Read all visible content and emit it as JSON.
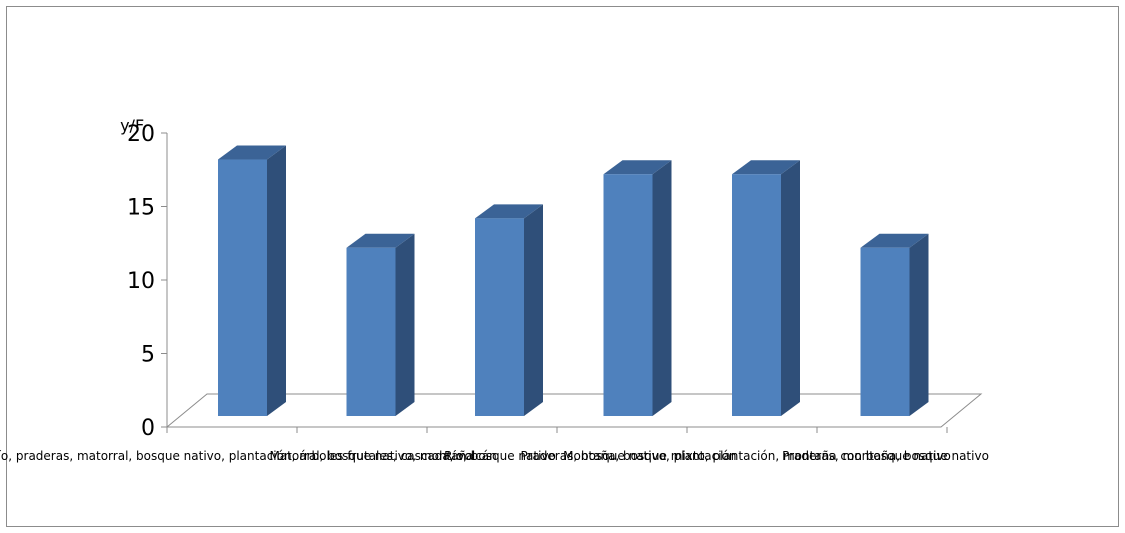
{
  "chart_data": {
    "type": "bar",
    "title": "",
    "xlabel": "",
    "ylabel": " y/F",
    "ylim": [
      0,
      20
    ],
    "yticks": [
      0,
      5,
      10,
      15,
      20
    ],
    "grid": false,
    "three_d": true,
    "bar_color": "#4f81bd",
    "bar_side_color": "#2f4f79",
    "bar_top_color": "#3b6396",
    "categories": [
      "Río, praderas, matorral, bosque nativo, plantación, árboles frutales, cascada, volcán",
      "Matorral, bosque nativo, montaña",
      "Río, bosque nativo",
      "Praderas, bosque nativo, plantación",
      "Montaña, bosque mixto, plantación, montaña con bosque nativo",
      "Praderas, montaña, bosque nativo"
    ],
    "values": [
      18.4,
      12.4,
      14.4,
      17.4,
      17.4,
      12.4
    ]
  }
}
